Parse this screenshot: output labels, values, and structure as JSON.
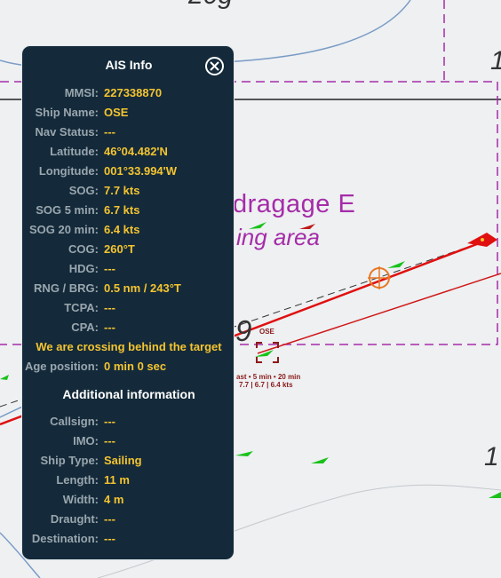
{
  "chart_labels": {
    "dredge_line1": "dragage E",
    "dredge_line2": "ing area",
    "depth_top": "20g",
    "depth_right1": "1",
    "depth_right2": "1",
    "depth_mid": "9",
    "target_name": "OSE",
    "target_label_line1": "ast • 5 min • 20 min",
    "target_label_line2": "7.7 | 6.7 | 6.4 kts"
  },
  "ais_panel": {
    "title": "AIS Info",
    "rows": [
      {
        "label": "MMSI:",
        "value": "227338870"
      },
      {
        "label": "Ship Name:",
        "value": "OSE"
      },
      {
        "label": "Nav Status:",
        "value": "---"
      },
      {
        "label": "Latitude:",
        "value": "46°04.482'N"
      },
      {
        "label": "Longitude:",
        "value": "001°33.994'W"
      },
      {
        "label": "SOG:",
        "value": "7.7 kts"
      },
      {
        "label": "SOG 5 min:",
        "value": "6.7 kts"
      },
      {
        "label": "SOG 20 min:",
        "value": "6.4 kts"
      },
      {
        "label": "COG:",
        "value": "260°T"
      },
      {
        "label": "HDG:",
        "value": "---"
      },
      {
        "label": "RNG / BRG:",
        "value": "0.5 nm / 243°T"
      },
      {
        "label": "TCPA:",
        "value": "---"
      },
      {
        "label": "CPA:",
        "value": "---"
      }
    ],
    "crossing_notice": "We are crossing behind the target",
    "age_row": {
      "label": "Age position:",
      "value": "0 min 0 sec"
    },
    "section_heading": "Additional information",
    "additional_rows": [
      {
        "label": "Callsign:",
        "value": "---"
      },
      {
        "label": "IMO:",
        "value": "---"
      },
      {
        "label": "Ship Type:",
        "value": "Sailing"
      },
      {
        "label": "Length:",
        "value": "11 m"
      },
      {
        "label": "Width:",
        "value": "4 m"
      },
      {
        "label": "Draught:",
        "value": "---"
      },
      {
        "label": "Destination:",
        "value": "---"
      }
    ]
  },
  "colors": {
    "panel_bg": "#142a3a",
    "value_yellow": "#f4c430",
    "label_grey": "#9aa6ae",
    "track_red": "#e01010",
    "zone_magenta": "#a52ca8"
  }
}
